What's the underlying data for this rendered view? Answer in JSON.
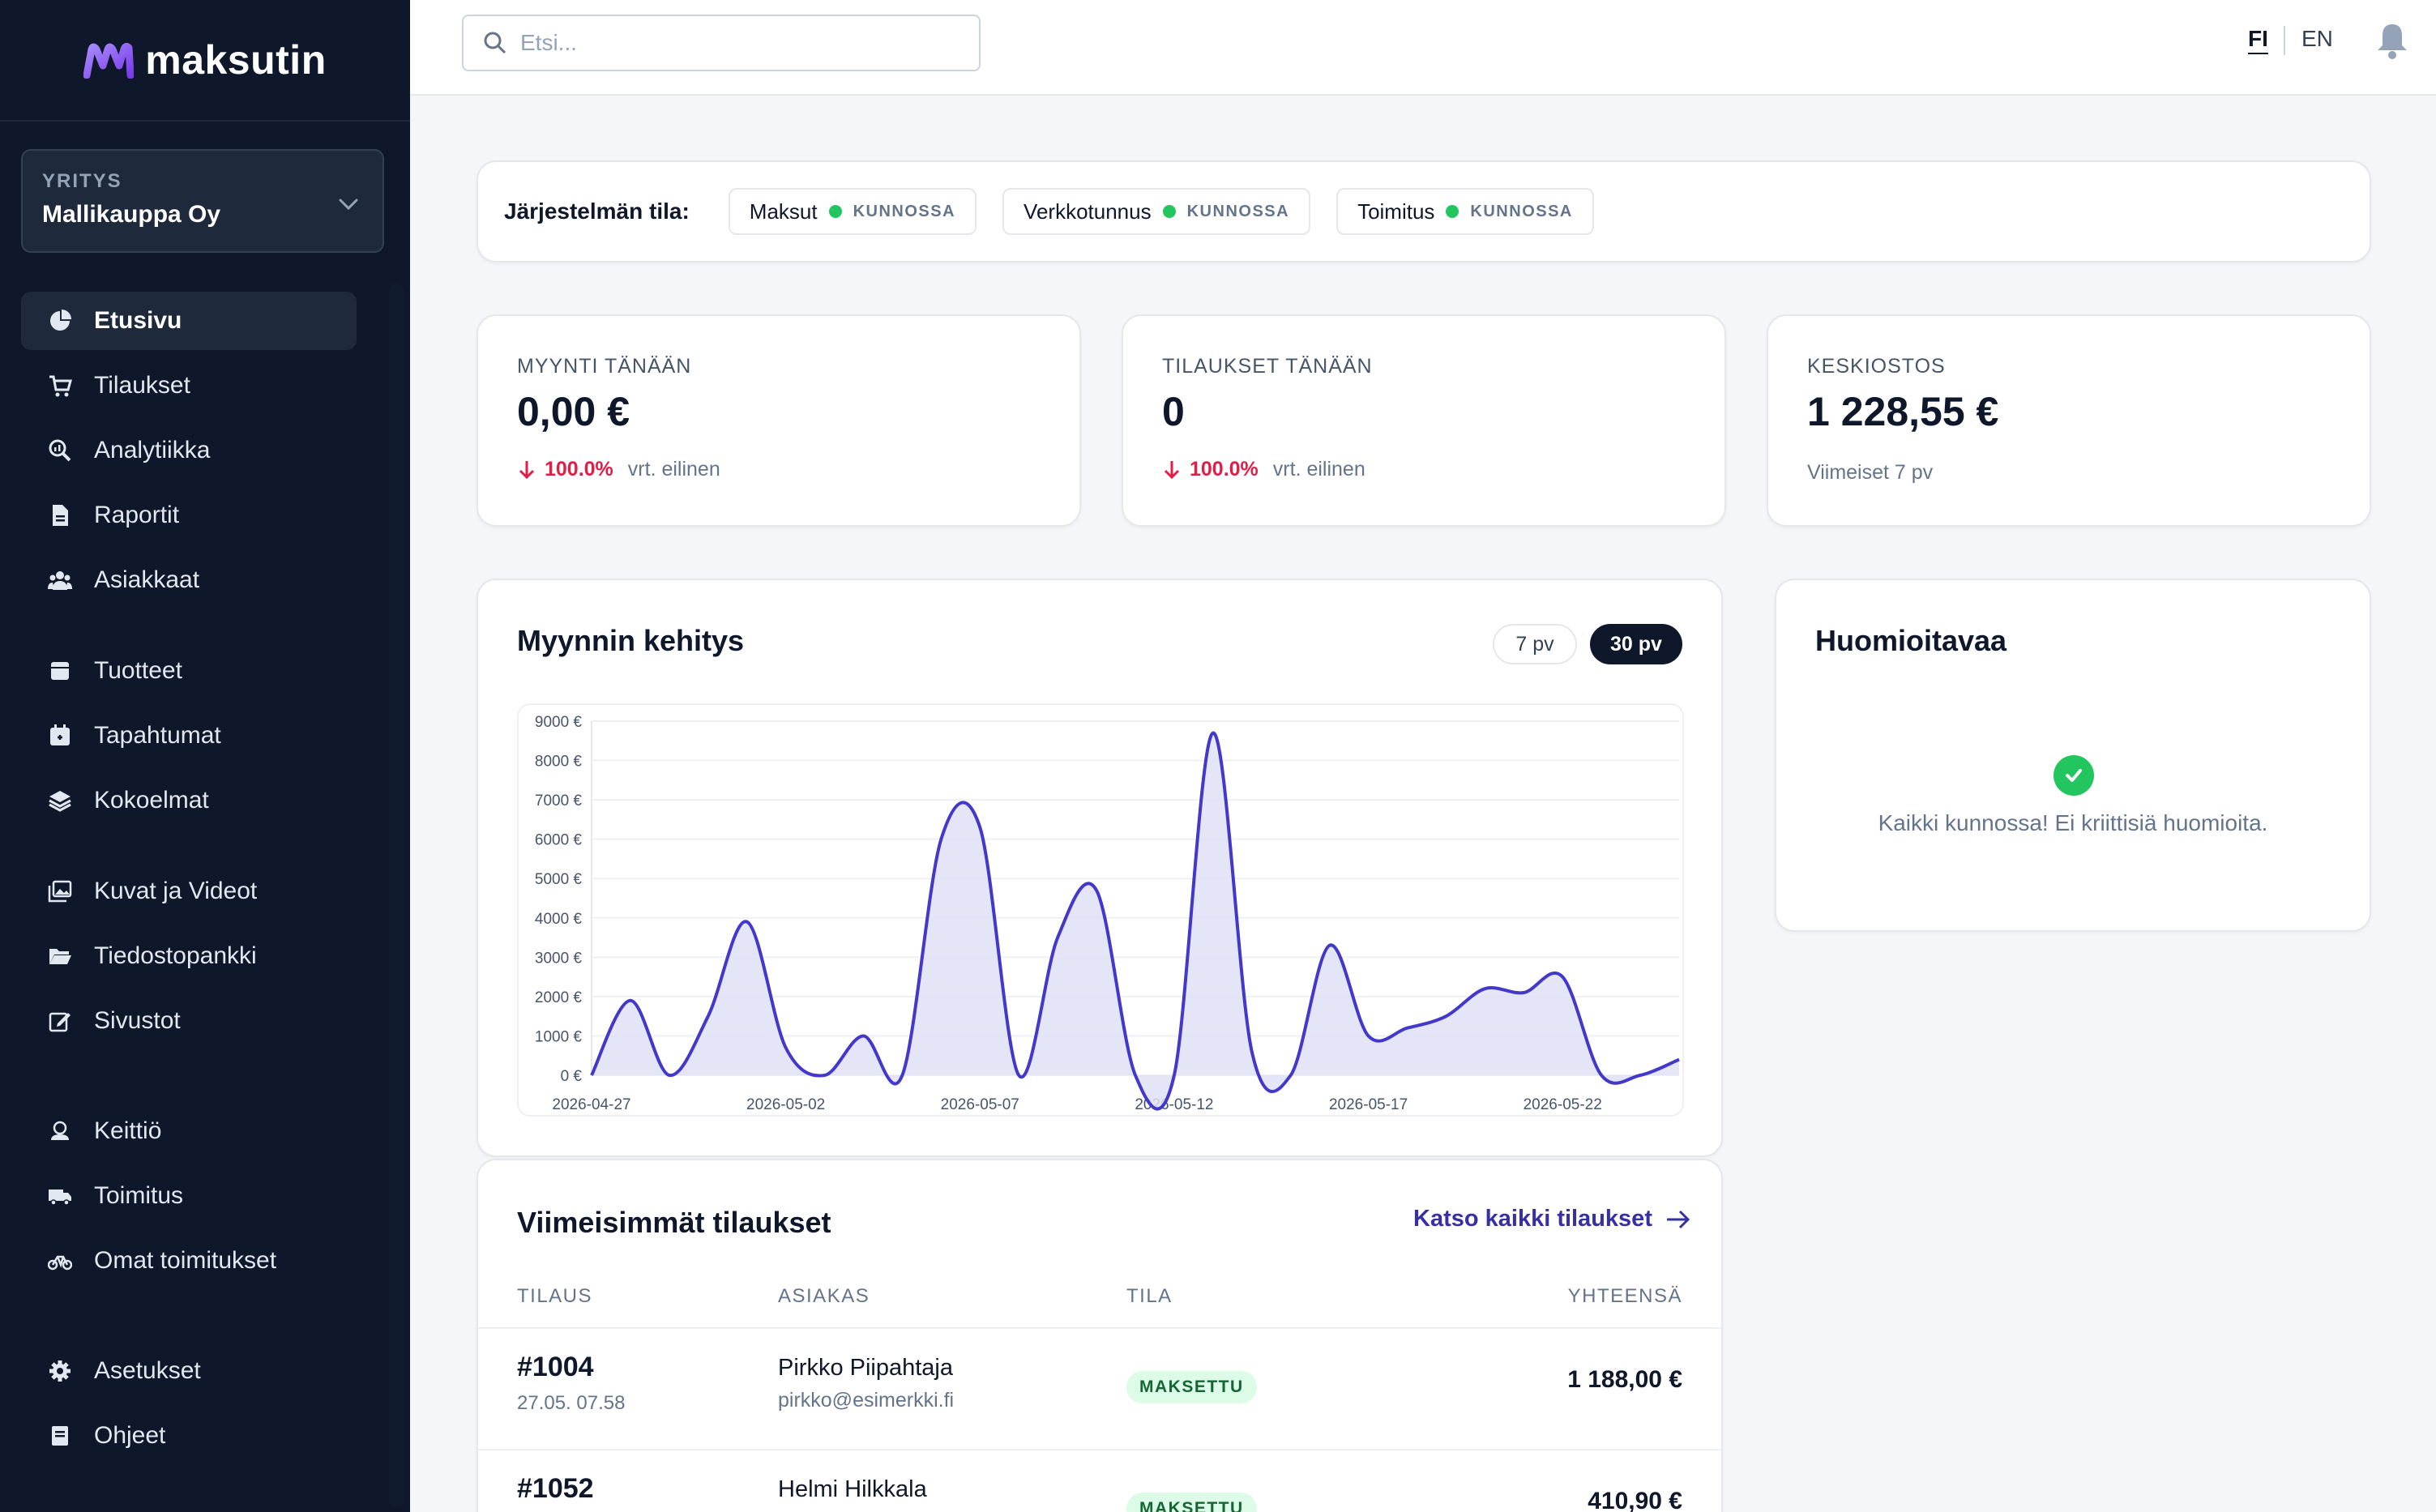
{
  "brand": {
    "name": "maksutin"
  },
  "company": {
    "label": "YRITYS",
    "name": "Mallikauppa Oy"
  },
  "sidebar": {
    "items": [
      {
        "label": "Etusivu",
        "icon": "pie-chart-icon",
        "active": true
      },
      {
        "label": "Tilaukset",
        "icon": "cart-icon"
      },
      {
        "label": "Analytiikka",
        "icon": "magnifier-chart-icon"
      },
      {
        "label": "Raportit",
        "icon": "file-report-icon"
      },
      {
        "label": "Asiakkaat",
        "icon": "users-icon"
      },
      {
        "label": "Tuotteet",
        "icon": "box-icon"
      },
      {
        "label": "Tapahtumat",
        "icon": "calendar-icon"
      },
      {
        "label": "Kokoelmat",
        "icon": "layers-icon"
      },
      {
        "label": "Kuvat ja Videot",
        "icon": "images-icon"
      },
      {
        "label": "Tiedostopankki",
        "icon": "folder-open-icon"
      },
      {
        "label": "Sivustot",
        "icon": "edit-icon"
      },
      {
        "label": "Keittiö",
        "icon": "chef-icon"
      },
      {
        "label": "Toimitus",
        "icon": "truck-icon"
      },
      {
        "label": "Omat toimitukset",
        "icon": "bicycle-icon"
      },
      {
        "label": "Asetukset",
        "icon": "gear-icon"
      },
      {
        "label": "Ohjeet",
        "icon": "book-icon"
      }
    ]
  },
  "topbar": {
    "search_placeholder": "Etsi...",
    "lang_fi": "FI",
    "lang_en": "EN"
  },
  "system_status": {
    "label": "Järjestelmän tila:",
    "services": [
      {
        "name": "Maksut",
        "status": "KUNNOSSA"
      },
      {
        "name": "Verkkotunnus",
        "status": "KUNNOSSA"
      },
      {
        "name": "Toimitus",
        "status": "KUNNOSSA"
      }
    ]
  },
  "kpis": {
    "sales": {
      "label": "MYYNTI TÄNÄÄN",
      "value": "0,00 €",
      "delta": "100.0%",
      "compare": "vrt. eilinen"
    },
    "orders": {
      "label": "TILAUKSET TÄNÄÄN",
      "value": "0",
      "delta": "100.0%",
      "compare": "vrt. eilinen"
    },
    "avg": {
      "label": "KESKIOSTOS",
      "value": "1 228,55 €",
      "sub": "Viimeiset 7 pv"
    }
  },
  "chart": {
    "title": "Myynnin kehitys",
    "range_7": "7 pv",
    "range_30": "30 pv"
  },
  "chart_data": {
    "type": "area",
    "title": "Myynnin kehitys",
    "xlabel": "",
    "ylabel": "",
    "ylim": [
      0,
      9000
    ],
    "y_ticks": [
      "0 €",
      "1000 €",
      "2000 €",
      "3000 €",
      "4000 €",
      "5000 €",
      "6000 €",
      "7000 €",
      "8000 €",
      "9000 €"
    ],
    "x_tick_labels": [
      "2026-04-27",
      "2026-05-02",
      "2026-05-07",
      "2026-05-12",
      "2026-05-17",
      "2026-05-22"
    ],
    "x_tick_every": 5,
    "grid": true,
    "color": "#4338ca",
    "fill": "#e0e0f7",
    "series": [
      {
        "values": [
          0,
          1900,
          0,
          1500,
          3900,
          700,
          0,
          1000,
          0,
          6000,
          6300,
          0,
          3500,
          4700,
          0,
          0,
          8700,
          600,
          0,
          3300,
          1000,
          1200,
          1500,
          2200,
          2100,
          2500,
          0,
          0,
          400
        ]
      }
    ]
  },
  "attention": {
    "title": "Huomioitavaa",
    "message": "Kaikki kunnossa! Ei kriittisiä huomioita."
  },
  "orders": {
    "title": "Viimeisimmät tilaukset",
    "view_all": "Katso kaikki tilaukset",
    "columns": [
      "TILAUS",
      "ASIAKAS",
      "TILA",
      "YHTEENSÄ"
    ],
    "rows": [
      {
        "id": "#1004",
        "date": "27.05. 07.58",
        "customer": "Pirkko Piipahtaja",
        "email": "pirkko@esimerkki.fi",
        "status": "MAKSETTU",
        "total": "1 188,00 €"
      },
      {
        "id": "#1052",
        "date": "",
        "customer": "Helmi Hilkkala",
        "email": "",
        "status": "MAKSETTU",
        "total": "410,90 €"
      }
    ]
  },
  "colors": {
    "sidebar_bg": "#0f172a",
    "accent": "#4338ca",
    "ok": "#22c55e",
    "negative": "#e11d48"
  }
}
